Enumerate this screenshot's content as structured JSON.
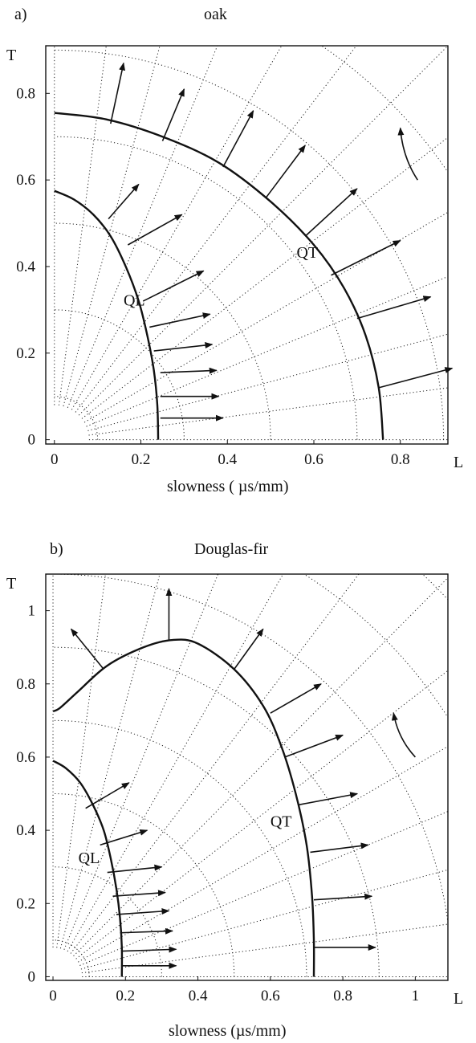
{
  "chart_data": [
    {
      "type": "line",
      "panel_label": "a)",
      "title": "oak",
      "xlabel": "slowness ( µs/mm)",
      "x_axis_label": "L",
      "y_axis_label": "T",
      "xlim": [
        -0.02,
        0.91
      ],
      "ylim": [
        -0.01,
        0.91
      ],
      "x_ticks": [
        "0",
        "0.2",
        "0.4",
        "0.6",
        "0.8"
      ],
      "x_tick_values": [
        0,
        0.2,
        0.4,
        0.6,
        0.8
      ],
      "y_ticks": [
        "0",
        "0.2",
        "0.4",
        "0.6",
        "0.8"
      ],
      "y_tick_values": [
        0,
        0.2,
        0.4,
        0.6,
        0.8
      ],
      "annotations": [
        {
          "text": "QL",
          "x": 0.16,
          "y": 0.31
        },
        {
          "text": "QT",
          "x": 0.56,
          "y": 0.42
        }
      ],
      "series": [
        {
          "name": "QL",
          "points": [
            [
              0.24,
              0
            ],
            [
              0.238,
              0.08
            ],
            [
              0.23,
              0.16
            ],
            [
              0.215,
              0.24
            ],
            [
              0.195,
              0.32
            ],
            [
              0.165,
              0.4
            ],
            [
              0.13,
              0.47
            ],
            [
              0.09,
              0.52
            ],
            [
              0.045,
              0.555
            ],
            [
              0,
              0.575
            ]
          ]
        },
        {
          "name": "QT",
          "points": [
            [
              0.76,
              0
            ],
            [
              0.75,
              0.12
            ],
            [
              0.72,
              0.24
            ],
            [
              0.67,
              0.35
            ],
            [
              0.6,
              0.45
            ],
            [
              0.5,
              0.55
            ],
            [
              0.38,
              0.64
            ],
            [
              0.25,
              0.7
            ],
            [
              0.12,
              0.74
            ],
            [
              0,
              0.755
            ]
          ]
        }
      ],
      "arrows": [
        [
          0.245,
          0.05,
          0.39,
          0.05
        ],
        [
          0.245,
          0.1,
          0.38,
          0.1
        ],
        [
          0.245,
          0.155,
          0.375,
          0.16
        ],
        [
          0.23,
          0.205,
          0.365,
          0.22
        ],
        [
          0.22,
          0.26,
          0.36,
          0.29
        ],
        [
          0.205,
          0.32,
          0.345,
          0.39
        ],
        [
          0.17,
          0.45,
          0.295,
          0.52
        ],
        [
          0.125,
          0.51,
          0.195,
          0.59
        ],
        [
          0.32,
          0.245,
          0.32,
          0.245
        ],
        [
          0.75,
          0.12,
          0.92,
          0.165
        ],
        [
          0.7,
          0.28,
          0.87,
          0.33
        ],
        [
          0.64,
          0.38,
          0.8,
          0.46
        ],
        [
          0.58,
          0.47,
          0.7,
          0.58
        ],
        [
          0.49,
          0.56,
          0.58,
          0.68
        ],
        [
          0.39,
          0.63,
          0.46,
          0.76
        ],
        [
          0.25,
          0.69,
          0.3,
          0.81
        ],
        [
          0.13,
          0.73,
          0.16,
          0.87
        ]
      ],
      "rotation_arrow": [
        [
          0.84,
          0.6
        ],
        [
          0.8,
          0.72
        ]
      ]
    },
    {
      "type": "line",
      "panel_label": "b)",
      "title": "Douglas-fir",
      "xlabel": "slowness (µs/mm)",
      "x_axis_label": "L",
      "y_axis_label": "T",
      "xlim": [
        -0.02,
        1.09
      ],
      "ylim": [
        -0.01,
        1.1
      ],
      "x_ticks": [
        "0",
        "0.2",
        "0.4",
        "0.6",
        "0.8",
        "1"
      ],
      "x_tick_values": [
        0,
        0.2,
        0.4,
        0.6,
        0.8,
        1
      ],
      "y_ticks": [
        "0",
        "0.2",
        "0.4",
        "0.6",
        "0.8",
        "1"
      ],
      "y_tick_values": [
        0,
        0.2,
        0.4,
        0.6,
        0.8,
        1
      ],
      "annotations": [
        {
          "text": "QL",
          "x": 0.07,
          "y": 0.31
        },
        {
          "text": "QT",
          "x": 0.6,
          "y": 0.41
        }
      ],
      "series": [
        {
          "name": "QL",
          "points": [
            [
              0.19,
              0
            ],
            [
              0.19,
              0.08
            ],
            [
              0.185,
              0.16
            ],
            [
              0.175,
              0.24
            ],
            [
              0.16,
              0.32
            ],
            [
              0.14,
              0.4
            ],
            [
              0.11,
              0.47
            ],
            [
              0.075,
              0.53
            ],
            [
              0.035,
              0.57
            ],
            [
              0,
              0.59
            ]
          ]
        },
        {
          "name": "QT",
          "points": [
            [
              0.72,
              0
            ],
            [
              0.72,
              0.1
            ],
            [
              0.715,
              0.22
            ],
            [
              0.7,
              0.36
            ],
            [
              0.67,
              0.5
            ],
            [
              0.63,
              0.63
            ],
            [
              0.58,
              0.74
            ],
            [
              0.5,
              0.84
            ],
            [
              0.4,
              0.91
            ],
            [
              0.33,
              0.92
            ],
            [
              0.25,
              0.9
            ],
            [
              0.15,
              0.85
            ],
            [
              0.07,
              0.78
            ],
            [
              0.02,
              0.735
            ],
            [
              0,
              0.725
            ]
          ]
        }
      ],
      "arrows": [
        [
          0.19,
          0.03,
          0.34,
          0.03
        ],
        [
          0.19,
          0.07,
          0.34,
          0.075
        ],
        [
          0.185,
          0.12,
          0.33,
          0.125
        ],
        [
          0.175,
          0.17,
          0.32,
          0.18
        ],
        [
          0.165,
          0.22,
          0.31,
          0.23
        ],
        [
          0.15,
          0.285,
          0.3,
          0.3
        ],
        [
          0.13,
          0.36,
          0.26,
          0.4
        ],
        [
          0.09,
          0.46,
          0.21,
          0.53
        ],
        [
          0.72,
          0.08,
          0.89,
          0.08
        ],
        [
          0.72,
          0.21,
          0.88,
          0.22
        ],
        [
          0.71,
          0.34,
          0.87,
          0.36
        ],
        [
          0.68,
          0.47,
          0.84,
          0.5
        ],
        [
          0.64,
          0.6,
          0.8,
          0.66
        ],
        [
          0.6,
          0.72,
          0.74,
          0.8
        ],
        [
          0.5,
          0.84,
          0.58,
          0.95
        ],
        [
          0.32,
          0.92,
          0.32,
          1.06
        ],
        [
          0.14,
          0.84,
          0.05,
          0.95
        ]
      ],
      "rotation_arrow": [
        [
          1.0,
          0.6
        ],
        [
          0.94,
          0.72
        ]
      ]
    }
  ],
  "panels": {
    "a": {
      "label": "a)",
      "title": "oak",
      "xlabel": "slowness ( µs/mm)"
    },
    "b": {
      "label": "b)",
      "title": "Douglas-fir",
      "xlabel": "slowness (µs/mm)"
    }
  }
}
